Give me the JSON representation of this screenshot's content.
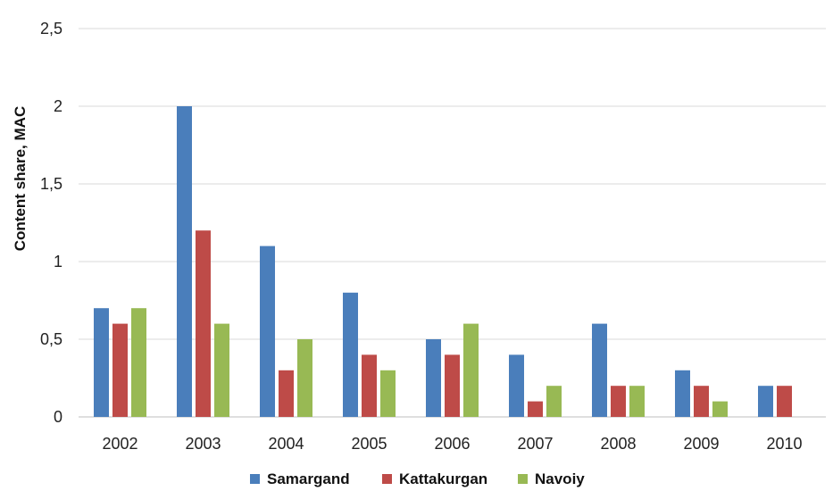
{
  "chart_data": {
    "type": "bar",
    "title": "",
    "xlabel": "",
    "ylabel": "Content share, MAC",
    "ylim": [
      0,
      2.5
    ],
    "yticks": [
      "0",
      "0,5",
      "1",
      "1,5",
      "2",
      "2,5"
    ],
    "ytick_values": [
      0,
      0.5,
      1,
      1.5,
      2,
      2.5
    ],
    "grid": true,
    "legend_position": "bottom",
    "categories": [
      "2002",
      "2003",
      "2004",
      "2005",
      "2006",
      "2007",
      "2008",
      "2009",
      "2010"
    ],
    "series": [
      {
        "name": "Samargand",
        "color": "#4a7ebb",
        "values": [
          0.7,
          2.0,
          1.1,
          0.8,
          0.5,
          0.4,
          0.6,
          0.3,
          0.2
        ]
      },
      {
        "name": "Kattakurgan",
        "color": "#be4b48",
        "values": [
          0.6,
          1.2,
          0.3,
          0.4,
          0.4,
          0.1,
          0.2,
          0.2,
          0.2
        ]
      },
      {
        "name": "Navoiy",
        "color": "#98b954",
        "values": [
          0.7,
          0.6,
          0.5,
          0.3,
          0.6,
          0.2,
          0.2,
          0.1,
          null
        ]
      }
    ]
  }
}
